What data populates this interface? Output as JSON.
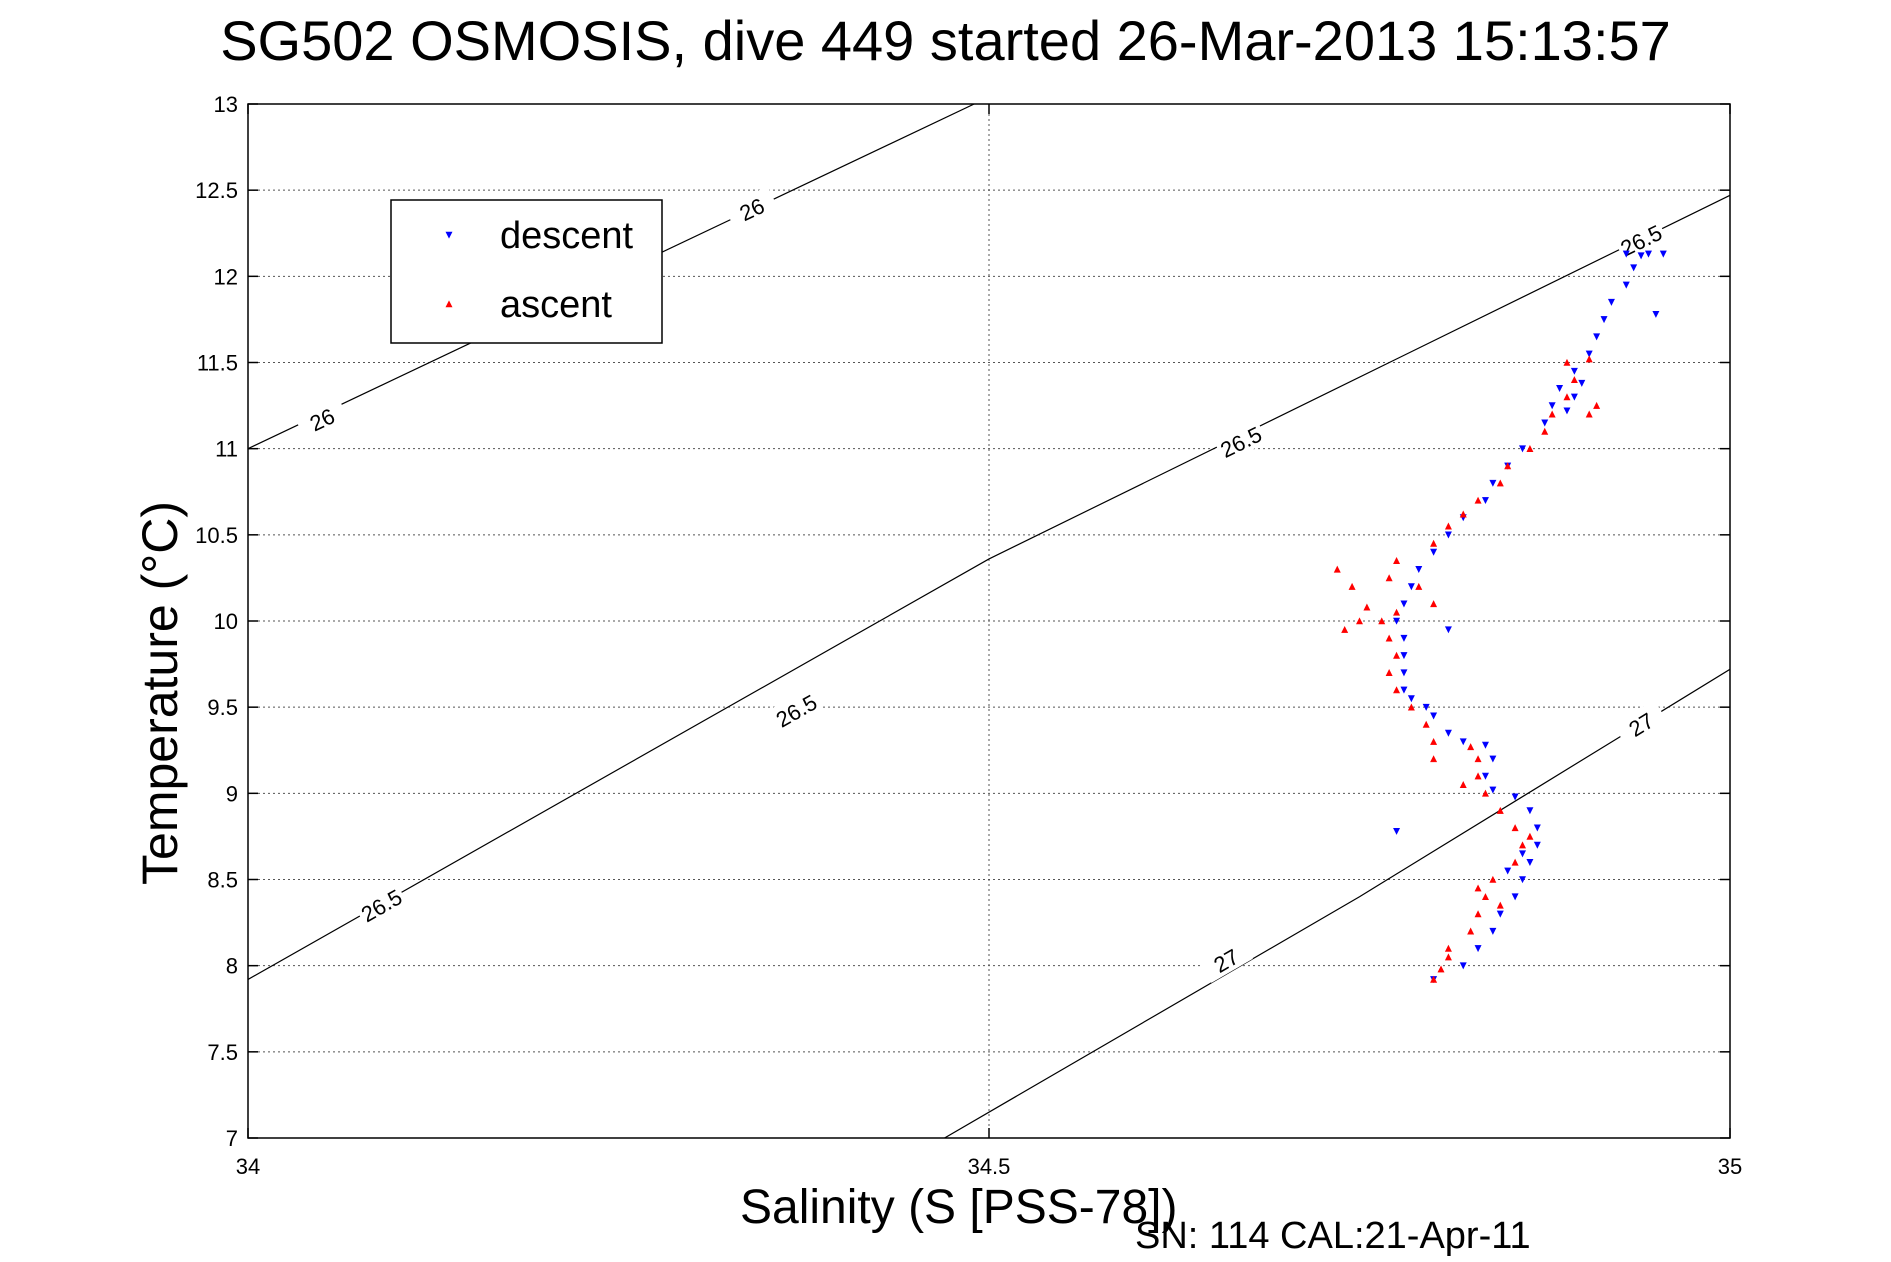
{
  "chart_data": {
    "type": "scatter",
    "title": "SG502 OSMOSIS, dive 449 started 26-Mar-2013 15:13:57",
    "xlabel": "Salinity (S [PSS-78])",
    "ylabel": "Temperature (°C)",
    "footer": "SN: 114  CAL:21-Apr-11",
    "xlim": [
      34,
      35
    ],
    "ylim": [
      7,
      13
    ],
    "xticks": [
      "34",
      "34.5",
      "35"
    ],
    "yticks": [
      "7",
      "7.5",
      "8",
      "8.5",
      "9",
      "9.5",
      "10",
      "10.5",
      "11",
      "11.5",
      "12",
      "12.5",
      "13"
    ],
    "grid": true,
    "legend_position": "top-left",
    "density_contours": [
      {
        "level": "26",
        "points": [
          [
            34,
            11.0
          ],
          [
            34.49,
            13.0
          ]
        ]
      },
      {
        "level": "26.5",
        "points": [
          [
            34,
            7.92
          ],
          [
            34.5,
            10.36
          ],
          [
            35,
            12.47
          ]
        ]
      },
      {
        "level": "27",
        "points": [
          [
            34.47,
            7.0
          ],
          [
            34.75,
            8.4
          ],
          [
            35,
            9.72
          ]
        ]
      }
    ],
    "contour_labels": [
      {
        "text": "26",
        "at": [
          34.34,
          12.39
        ]
      },
      {
        "text": "26",
        "at": [
          34.05,
          11.17
        ]
      },
      {
        "text": "26.5",
        "at": [
          34.94,
          12.21
        ]
      },
      {
        "text": "26.5",
        "at": [
          34.67,
          11.04
        ]
      },
      {
        "text": "26.5",
        "at": [
          34.37,
          9.48
        ]
      },
      {
        "text": "26.5",
        "at": [
          34.09,
          8.35
        ]
      },
      {
        "text": "27",
        "at": [
          34.94,
          9.4
        ]
      },
      {
        "text": "27",
        "at": [
          34.66,
          8.03
        ]
      }
    ],
    "series": [
      {
        "name": "descent",
        "color": "#0000ff",
        "marker": "triangle-down",
        "points": [
          [
            34.8,
            7.92
          ],
          [
            34.82,
            8.0
          ],
          [
            34.83,
            8.1
          ],
          [
            34.84,
            8.2
          ],
          [
            34.845,
            8.3
          ],
          [
            34.855,
            8.4
          ],
          [
            34.86,
            8.5
          ],
          [
            34.865,
            8.6
          ],
          [
            34.87,
            8.7
          ],
          [
            34.87,
            8.8
          ],
          [
            34.865,
            8.9
          ],
          [
            34.855,
            8.98
          ],
          [
            34.84,
            9.02
          ],
          [
            34.835,
            9.1
          ],
          [
            34.84,
            9.2
          ],
          [
            34.835,
            9.28
          ],
          [
            34.82,
            9.3
          ],
          [
            34.81,
            9.35
          ],
          [
            34.8,
            9.45
          ],
          [
            34.795,
            9.5
          ],
          [
            34.785,
            9.55
          ],
          [
            34.78,
            9.6
          ],
          [
            34.78,
            9.7
          ],
          [
            34.78,
            9.8
          ],
          [
            34.78,
            9.9
          ],
          [
            34.775,
            10.0
          ],
          [
            34.78,
            10.1
          ],
          [
            34.785,
            10.2
          ],
          [
            34.79,
            10.3
          ],
          [
            34.8,
            10.4
          ],
          [
            34.81,
            10.5
          ],
          [
            34.82,
            10.6
          ],
          [
            34.835,
            10.7
          ],
          [
            34.84,
            10.8
          ],
          [
            34.85,
            10.9
          ],
          [
            34.86,
            11.0
          ],
          [
            34.875,
            11.15
          ],
          [
            34.88,
            11.25
          ],
          [
            34.885,
            11.35
          ],
          [
            34.895,
            11.45
          ],
          [
            34.905,
            11.55
          ],
          [
            34.91,
            11.65
          ],
          [
            34.915,
            11.75
          ],
          [
            34.92,
            11.85
          ],
          [
            34.93,
            11.95
          ],
          [
            34.935,
            12.05
          ],
          [
            34.94,
            12.12
          ],
          [
            34.93,
            12.13
          ],
          [
            34.945,
            12.13
          ],
          [
            34.955,
            12.13
          ],
          [
            34.95,
            11.78
          ],
          [
            34.89,
            11.22
          ],
          [
            34.895,
            11.3
          ],
          [
            34.9,
            11.38
          ],
          [
            34.81,
            9.95
          ],
          [
            34.775,
            8.78
          ],
          [
            34.85,
            8.55
          ],
          [
            34.86,
            8.65
          ]
        ]
      },
      {
        "name": "ascent",
        "color": "#ff0000",
        "marker": "triangle-up",
        "points": [
          [
            34.8,
            7.92
          ],
          [
            34.805,
            7.98
          ],
          [
            34.81,
            8.1
          ],
          [
            34.825,
            8.2
          ],
          [
            34.83,
            8.3
          ],
          [
            34.835,
            8.4
          ],
          [
            34.84,
            8.5
          ],
          [
            34.855,
            8.6
          ],
          [
            34.86,
            8.7
          ],
          [
            34.855,
            8.8
          ],
          [
            34.845,
            8.9
          ],
          [
            34.835,
            9.0
          ],
          [
            34.83,
            9.1
          ],
          [
            34.83,
            9.2
          ],
          [
            34.825,
            9.27
          ],
          [
            34.8,
            9.3
          ],
          [
            34.795,
            9.4
          ],
          [
            34.785,
            9.5
          ],
          [
            34.775,
            9.6
          ],
          [
            34.77,
            9.7
          ],
          [
            34.775,
            9.8
          ],
          [
            34.77,
            9.9
          ],
          [
            34.765,
            10.0
          ],
          [
            34.755,
            10.08
          ],
          [
            34.745,
            10.2
          ],
          [
            34.77,
            10.25
          ],
          [
            34.775,
            10.35
          ],
          [
            34.8,
            10.45
          ],
          [
            34.81,
            10.55
          ],
          [
            34.82,
            10.62
          ],
          [
            34.83,
            10.7
          ],
          [
            34.845,
            10.8
          ],
          [
            34.85,
            10.9
          ],
          [
            34.865,
            11.0
          ],
          [
            34.875,
            11.1
          ],
          [
            34.88,
            11.2
          ],
          [
            34.89,
            11.3
          ],
          [
            34.895,
            11.4
          ],
          [
            34.89,
            11.5
          ],
          [
            34.905,
            11.52
          ],
          [
            34.905,
            11.2
          ],
          [
            34.91,
            11.25
          ],
          [
            34.74,
            9.95
          ],
          [
            34.75,
            10.0
          ],
          [
            34.775,
            10.05
          ],
          [
            34.8,
            10.1
          ],
          [
            34.735,
            10.3
          ],
          [
            34.79,
            10.2
          ],
          [
            34.8,
            9.2
          ],
          [
            34.82,
            9.05
          ],
          [
            34.83,
            8.45
          ],
          [
            34.845,
            8.35
          ],
          [
            34.865,
            8.75
          ],
          [
            34.81,
            8.05
          ]
        ]
      }
    ]
  }
}
